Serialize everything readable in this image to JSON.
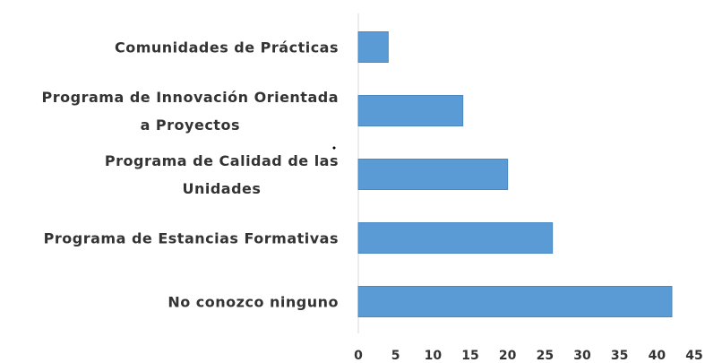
{
  "chart_data": {
    "type": "bar",
    "orientation": "horizontal",
    "categories": [
      "Comunidades de Prácticas",
      "Programa de Innovación Orientada\na Proyectos",
      "Programa de Calidad de las\nUnidades",
      "Programa de Estancias Formativas",
      "No conozco ninguno"
    ],
    "values": [
      4,
      14,
      20,
      26,
      42
    ],
    "color": "#5b9bd5",
    "xlim": [
      0,
      45
    ],
    "xticks": [
      0,
      5,
      10,
      15,
      20,
      25,
      30,
      35,
      40,
      45
    ]
  }
}
